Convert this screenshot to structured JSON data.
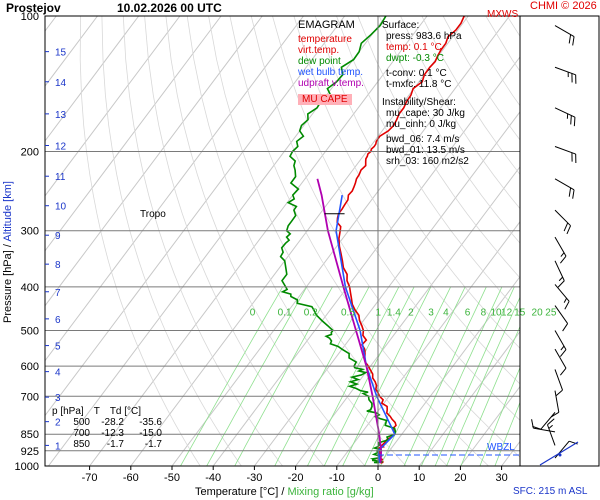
{
  "header": {
    "station": "Prostejov",
    "datetime": "10.02.2026 00 UTC",
    "credit": "CHMI © 2026",
    "mxws": "MXWS"
  },
  "legend": {
    "title": "EMAGRAM",
    "items": [
      {
        "label": "temperature",
        "color": "#e00000"
      },
      {
        "label": "virt.temp.",
        "color": "#e00000"
      },
      {
        "label": "dew point",
        "color": "#008a00"
      },
      {
        "label": "wet bulb temp.",
        "color": "#2255ff"
      },
      {
        "label": "udpraft v.temp.",
        "color": "#b000b0"
      }
    ],
    "mu_cape": "MU CAPE",
    "mu_cape_color": "#ffb0b8"
  },
  "surface": {
    "title": "Surface:",
    "press": "press: 983.6 hPa",
    "temp": "temp: 0.1 °C",
    "dwpt": "dwpt: -0.3 °C",
    "tconv": "t-conv: 0.1 °C",
    "tmxfc": "t-mxfc: 11.8 °C"
  },
  "instability": {
    "title": "Instability/Shear:",
    "mu_cape": "mu_cape: 30 J/kg",
    "mu_cinh": "mu_cinh: 0 J/kg",
    "bwd_06": "bwd_06: 7.4 m/s",
    "bwd_01": "bwd_01: 13.5 m/s",
    "srh_03": "srh_03: 160 m2/s2"
  },
  "level_table": {
    "headers": [
      "p [hPa]",
      "T",
      "Td [°C]"
    ],
    "rows": [
      [
        "500",
        "-28.2",
        "-35.6"
      ],
      [
        "700",
        "-12.3",
        "-15.0"
      ],
      [
        "850",
        "-1.7",
        "-1.7"
      ]
    ]
  },
  "labels": {
    "tropo": "Tropo",
    "wbzl": "WBZL",
    "sfc": "SFC: 215 m ASL",
    "xlabel": "Temperature [°C]",
    "xlabel_sep": "/",
    "xlabel2": "Mixing ratio [g/kg]",
    "ylabel": "Pressure [hPa]",
    "ylabel_sep": "/",
    "ylabel2": "Altitude [km]"
  },
  "chart_data": {
    "type": "line",
    "title": "Prostejov 10.02.2026 00 UTC",
    "xlabel": "Temperature [°C] / Mixing ratio [g/kg]",
    "ylabel": "Pressure [hPa] / Altitude [km]",
    "x_scale": "skewed",
    "y_scale": "log",
    "xlim": [
      -80,
      30
    ],
    "ylim": [
      1000,
      100
    ],
    "x_ticks": [
      -70,
      -60,
      -50,
      -40,
      -30,
      -20,
      -10,
      0,
      10,
      20,
      30
    ],
    "p_ticks": [
      100,
      200,
      300,
      400,
      500,
      600,
      700,
      850,
      925,
      1000
    ],
    "alt_ticks_km": [
      1,
      2,
      3,
      4,
      5,
      6,
      7,
      8,
      9,
      10,
      11,
      12,
      13,
      14,
      15
    ],
    "mixing_ratio_labels": [
      "0",
      "0.1",
      "0.2",
      "0.5",
      "1",
      "1.4",
      "2",
      "3",
      "4",
      "6",
      "8",
      "10",
      "12",
      "15",
      "20",
      "25"
    ],
    "grid": true,
    "series": [
      {
        "name": "temperature",
        "color": "#e00000",
        "p": [
          985,
          975,
          960,
          925,
          900,
          850,
          800,
          750,
          700,
          650,
          600,
          550,
          500,
          450,
          400,
          350,
          300,
          275,
          250,
          230,
          210,
          200,
          190,
          170,
          150,
          130,
          115,
          100
        ],
        "t": [
          0.1,
          -0.2,
          -0.8,
          -2.5,
          -2.8,
          -1.7,
          -3.8,
          -8.0,
          -12.3,
          -16.0,
          -20.5,
          -24.5,
          -28.2,
          -34.0,
          -39.5,
          -46.0,
          -52.0,
          -55.5,
          -56.5,
          -57.5,
          -58.5,
          -59.0,
          -59.5,
          -58.5,
          -59.5,
          -60.0,
          -60.5,
          -61.0
        ]
      },
      {
        "name": "dew point",
        "color": "#008a00",
        "p": [
          985,
          975,
          960,
          925,
          900,
          850,
          800,
          770,
          750,
          700,
          680,
          650,
          620,
          600,
          550,
          520,
          500,
          450,
          420,
          400,
          350,
          320,
          300,
          270,
          250,
          220,
          200,
          180,
          160,
          140,
          120,
          100
        ],
        "t": [
          -0.3,
          -1.0,
          -1.5,
          -3.0,
          -3.5,
          -1.7,
          -6.0,
          -9.0,
          -12.0,
          -15.0,
          -18.0,
          -22.0,
          -20.0,
          -24.0,
          -30.0,
          -35.0,
          -35.6,
          -44.0,
          -52.0,
          -55.0,
          -60.0,
          -63.0,
          -65.0,
          -67.0,
          -70.0,
          -74.0,
          -78.0,
          -80.0,
          -80.0,
          -80.0,
          -80.0,
          -80.0
        ]
      },
      {
        "name": "wet bulb temp.",
        "color": "#2255ff",
        "p": [
          985,
          925,
          850,
          700,
          600,
          500,
          400,
          300,
          250
        ],
        "t": [
          -0.1,
          -2.7,
          -1.7,
          -13.0,
          -21.0,
          -29.0,
          -40.5,
          -53.0,
          -58.0
        ]
      },
      {
        "name": "udpraft v.temp.",
        "color": "#b000b0",
        "p": [
          985,
          925,
          850,
          700,
          600,
          500,
          400,
          300,
          250,
          230
        ],
        "t": [
          0.1,
          -2.0,
          -5.5,
          -14.0,
          -21.0,
          -30.0,
          -41.0,
          -55.0,
          -63.0,
          -67.0
        ]
      }
    ]
  }
}
